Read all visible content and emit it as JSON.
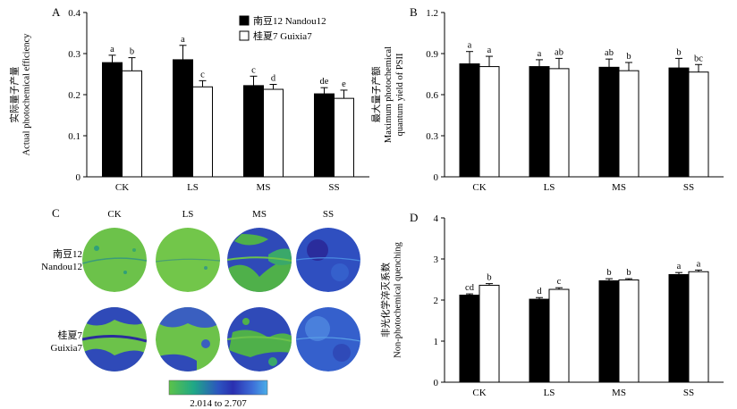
{
  "chart_data": [
    {
      "panel": "A",
      "type": "bar",
      "categories": [
        "CK",
        "LS",
        "MS",
        "SS"
      ],
      "ylabel": [
        "实际量子产量",
        "Actual photochemical efficiency"
      ],
      "ylim": [
        0,
        0.4
      ],
      "yticks": [
        "0",
        "0.1",
        "0.2",
        "0.3",
        "0.4"
      ],
      "yticks_values": [
        0,
        0.1,
        0.2,
        0.3,
        0.4
      ],
      "series": [
        {
          "name": "南豆12 Nandou12",
          "color": "#000000",
          "values": [
            0.278,
            0.285,
            0.222,
            0.202
          ],
          "errors": [
            0.018,
            0.035,
            0.023,
            0.015
          ],
          "labels": [
            "a",
            "a",
            "c",
            "de"
          ]
        },
        {
          "name": "桂夏7 Guixia7",
          "color": "#ffffff",
          "values": [
            0.258,
            0.219,
            0.213,
            0.191
          ],
          "errors": [
            0.032,
            0.015,
            0.012,
            0.02
          ],
          "labels": [
            "b",
            "c",
            "d",
            "e"
          ]
        }
      ],
      "legend": "top-right"
    },
    {
      "panel": "B",
      "type": "bar",
      "categories": [
        "CK",
        "LS",
        "MS",
        "SS"
      ],
      "ylabel": [
        "最大量子产额",
        "Maximum photochemical",
        "quantum yield of PSII"
      ],
      "ylim": [
        0,
        1.2
      ],
      "yticks": [
        "0",
        "0.3",
        "0.6",
        "0.9",
        "1.2"
      ],
      "yticks_values": [
        0,
        0.3,
        0.6,
        0.9,
        1.2
      ],
      "series": [
        {
          "name": "南豆12 Nandou12",
          "color": "#000000",
          "values": [
            0.825,
            0.805,
            0.8,
            0.795
          ],
          "errors": [
            0.09,
            0.05,
            0.06,
            0.07
          ],
          "labels": [
            "a",
            "a",
            "ab",
            "b"
          ]
        },
        {
          "name": "桂夏7 Guixia7",
          "color": "#ffffff",
          "values": [
            0.805,
            0.79,
            0.775,
            0.765
          ],
          "errors": [
            0.075,
            0.075,
            0.06,
            0.055
          ],
          "labels": [
            "a",
            "ab",
            "b",
            "bc"
          ]
        }
      ]
    },
    {
      "panel": "D",
      "type": "bar",
      "categories": [
        "CK",
        "LS",
        "MS",
        "SS"
      ],
      "ylabel": [
        "非光化学淬灭系数",
        "Non-photochemical quenching"
      ],
      "ylim": [
        0,
        4
      ],
      "yticks": [
        "0",
        "1",
        "2",
        "3",
        "4"
      ],
      "yticks_values": [
        0,
        1,
        2,
        3,
        4
      ],
      "series": [
        {
          "name": "南豆12 Nandou12",
          "color": "#000000",
          "values": [
            2.12,
            2.02,
            2.47,
            2.62
          ],
          "errors": [
            0.03,
            0.04,
            0.05,
            0.05
          ],
          "labels": [
            "cd",
            "d",
            "b",
            "a"
          ]
        },
        {
          "name": "桂夏7 Guixia7",
          "color": "#ffffff",
          "values": [
            2.36,
            2.26,
            2.49,
            2.69
          ],
          "errors": [
            0.04,
            0.04,
            0.03,
            0.04
          ],
          "labels": [
            "b",
            "c",
            "b",
            "a"
          ]
        }
      ]
    }
  ],
  "panel_c": {
    "label": "C",
    "columns": [
      "CK",
      "LS",
      "MS",
      "SS"
    ],
    "rows": [
      {
        "label_cn": "南豆12",
        "label_en": "Nandou12"
      },
      {
        "label_cn": "桂夏7",
        "label_en": "Guixia7"
      }
    ],
    "colorbar_label": "2.014 to 2.707",
    "colorbar_colors": [
      "#5cc249",
      "#1fa886",
      "#2c6fc7",
      "#2a2fb0",
      "#3d5fd8",
      "#4aa8e6"
    ],
    "leaf_colors": {
      "green": "#6cc24a",
      "blue": "#2f4ab8",
      "dark": "#2a2c9c"
    }
  }
}
